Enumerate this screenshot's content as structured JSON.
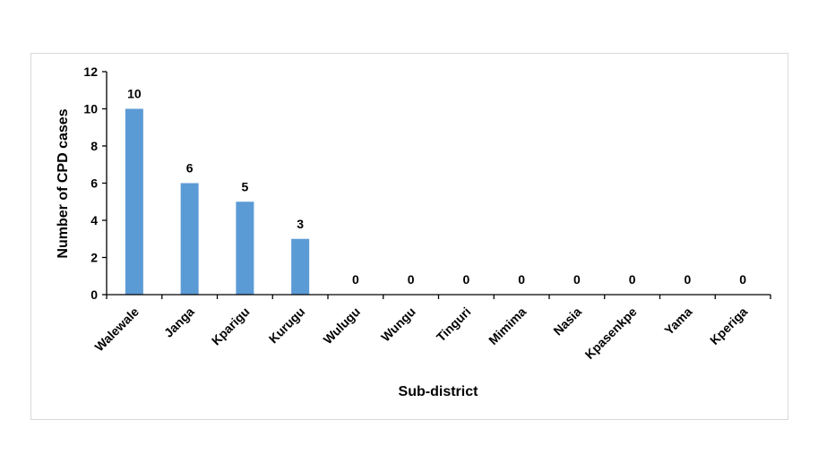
{
  "chart_data": {
    "type": "bar",
    "title": "",
    "xlabel": "Sub-district",
    "ylabel": "Number of CPD cases",
    "categories": [
      "Walewale",
      "Janga",
      "Kparigu",
      "Kurugu",
      "Wulugu",
      "Wungu",
      "Tinguri",
      "Mimima",
      "Nasia",
      "Kpasenkpe",
      "Yama",
      "Kperiga"
    ],
    "values": [
      10,
      6,
      5,
      3,
      0,
      0,
      0,
      0,
      0,
      0,
      0,
      0
    ],
    "ylim": [
      0,
      12
    ],
    "yticks": [
      0,
      2,
      4,
      6,
      8,
      10,
      12
    ],
    "grid": false,
    "legend": "none",
    "bar_color": "#5b9bd5"
  }
}
